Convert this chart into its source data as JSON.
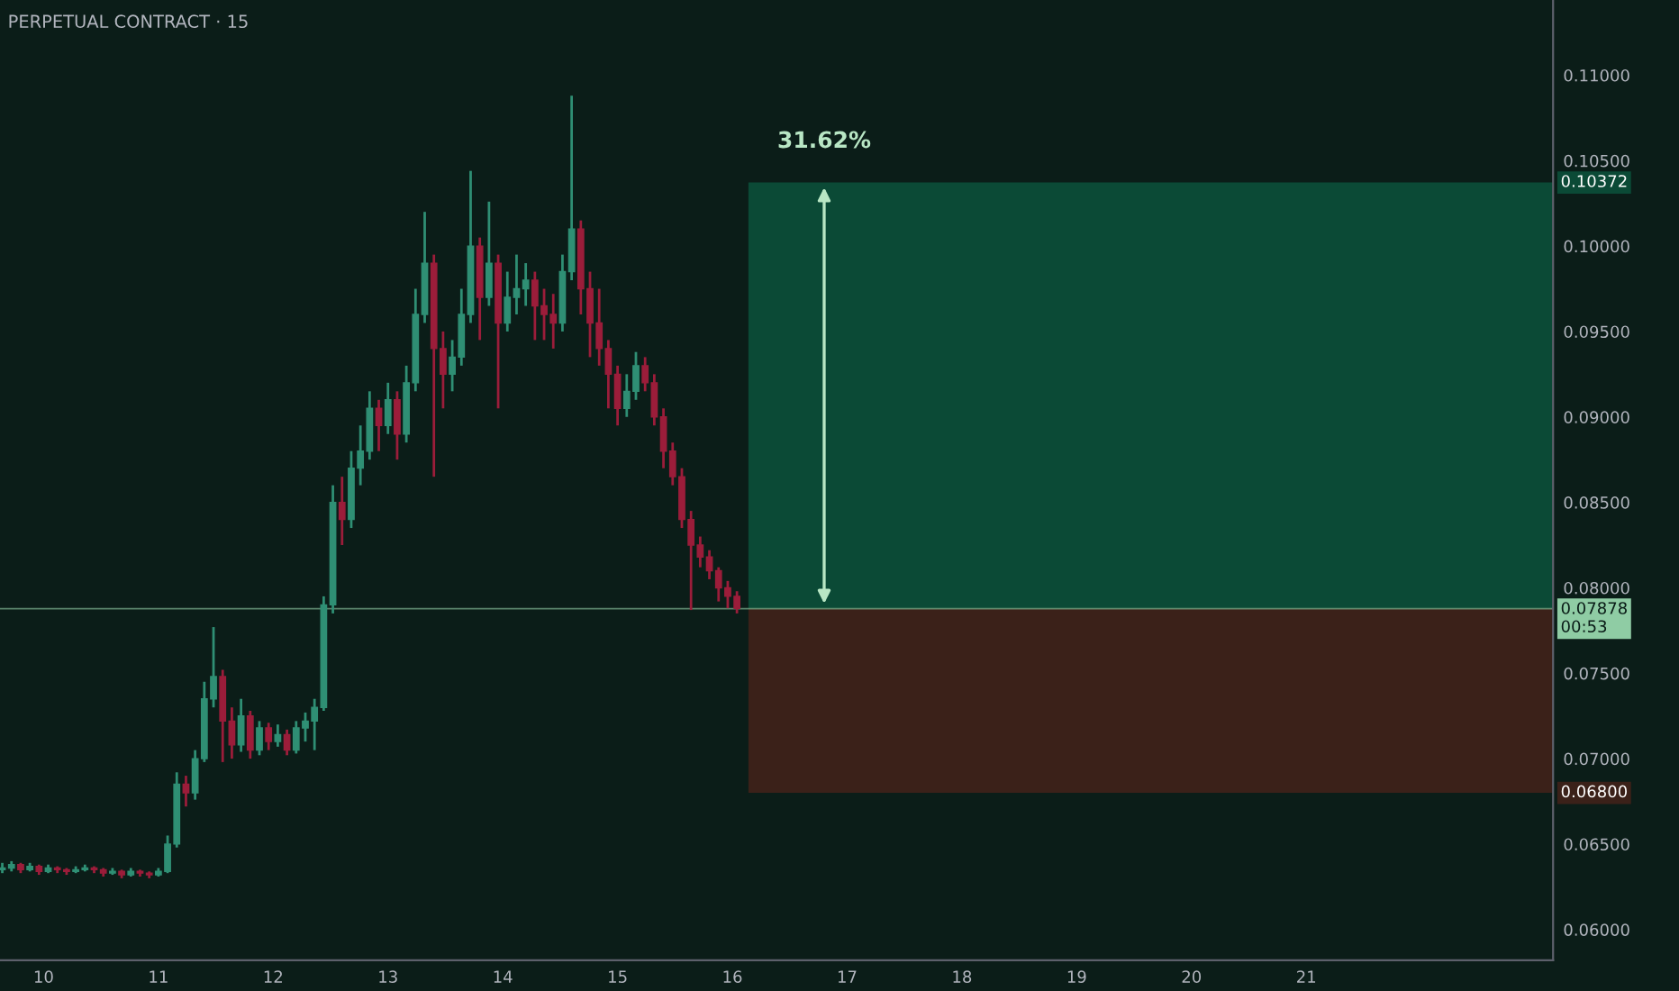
{
  "chart_data": {
    "type": "candlestick",
    "title": "PERPETUAL CONTRACT · 15",
    "x": [
      9.64,
      9.72,
      9.8,
      9.88,
      9.96,
      10.04,
      10.12,
      10.2,
      10.28,
      10.36,
      10.44,
      10.52,
      10.6,
      10.68,
      10.76,
      10.84,
      10.92,
      11.0,
      11.08,
      11.16,
      11.24,
      11.32,
      11.4,
      11.48,
      11.56,
      11.64,
      11.72,
      11.8,
      11.88,
      11.96,
      12.04,
      12.12,
      12.2,
      12.28,
      12.36,
      12.44,
      12.52,
      12.6,
      12.68,
      12.76,
      12.84,
      12.92,
      13.0,
      13.08,
      13.16,
      13.24,
      13.32,
      13.4,
      13.48,
      13.56,
      13.64,
      13.72,
      13.8,
      13.88,
      13.96,
      14.04,
      14.12,
      14.2,
      14.28,
      14.36,
      14.44,
      14.52,
      14.6,
      14.68,
      14.76,
      14.84,
      14.92,
      15.0,
      15.08,
      15.16,
      15.24,
      15.32,
      15.4,
      15.48,
      15.56,
      15.64,
      15.72,
      15.8,
      15.88,
      15.96,
      16.04
    ],
    "ohlc": [
      [
        0.0635,
        0.0639,
        0.0633,
        0.0636
      ],
      [
        0.0636,
        0.064,
        0.0634,
        0.0638
      ],
      [
        0.0638,
        0.0639,
        0.0633,
        0.0635
      ],
      [
        0.0635,
        0.0639,
        0.0634,
        0.0637
      ],
      [
        0.0637,
        0.0638,
        0.0632,
        0.0634
      ],
      [
        0.0634,
        0.0638,
        0.0633,
        0.0636
      ],
      [
        0.0636,
        0.0637,
        0.0633,
        0.0635
      ],
      [
        0.0635,
        0.0636,
        0.0632,
        0.0634
      ],
      [
        0.0634,
        0.0637,
        0.0633,
        0.0635
      ],
      [
        0.0635,
        0.0638,
        0.0634,
        0.0636
      ],
      [
        0.0636,
        0.0637,
        0.0633,
        0.0635
      ],
      [
        0.0635,
        0.0636,
        0.0631,
        0.0633
      ],
      [
        0.0633,
        0.0636,
        0.0632,
        0.0634
      ],
      [
        0.0634,
        0.0635,
        0.063,
        0.0632
      ],
      [
        0.0632,
        0.0636,
        0.0631,
        0.0634
      ],
      [
        0.0634,
        0.0635,
        0.0631,
        0.0633
      ],
      [
        0.0633,
        0.0634,
        0.063,
        0.0632
      ],
      [
        0.0632,
        0.0636,
        0.0631,
        0.0634
      ],
      [
        0.0634,
        0.0655,
        0.0633,
        0.065
      ],
      [
        0.065,
        0.0692,
        0.0648,
        0.0685
      ],
      [
        0.0685,
        0.069,
        0.0672,
        0.068
      ],
      [
        0.068,
        0.0705,
        0.0676,
        0.07
      ],
      [
        0.07,
        0.0745,
        0.0698,
        0.0735
      ],
      [
        0.0735,
        0.0777,
        0.073,
        0.0748
      ],
      [
        0.0748,
        0.0752,
        0.0698,
        0.0722
      ],
      [
        0.0722,
        0.073,
        0.07,
        0.0708
      ],
      [
        0.0708,
        0.0735,
        0.0704,
        0.0725
      ],
      [
        0.0725,
        0.0728,
        0.07,
        0.0705
      ],
      [
        0.0705,
        0.0722,
        0.0702,
        0.0718
      ],
      [
        0.0718,
        0.0721,
        0.0705,
        0.071
      ],
      [
        0.071,
        0.072,
        0.0707,
        0.0714
      ],
      [
        0.0714,
        0.0717,
        0.0702,
        0.0705
      ],
      [
        0.0705,
        0.0722,
        0.0703,
        0.0718
      ],
      [
        0.0718,
        0.0727,
        0.071,
        0.0722
      ],
      [
        0.0722,
        0.0735,
        0.0705,
        0.073
      ],
      [
        0.073,
        0.0795,
        0.0728,
        0.079
      ],
      [
        0.079,
        0.086,
        0.0785,
        0.085
      ],
      [
        0.085,
        0.0865,
        0.0825,
        0.084
      ],
      [
        0.084,
        0.088,
        0.0835,
        0.087
      ],
      [
        0.087,
        0.0895,
        0.086,
        0.088
      ],
      [
        0.088,
        0.0915,
        0.0875,
        0.0905
      ],
      [
        0.0905,
        0.091,
        0.088,
        0.0895
      ],
      [
        0.0895,
        0.092,
        0.089,
        0.091
      ],
      [
        0.091,
        0.0915,
        0.0875,
        0.089
      ],
      [
        0.089,
        0.093,
        0.0885,
        0.092
      ],
      [
        0.092,
        0.0975,
        0.0915,
        0.096
      ],
      [
        0.096,
        0.102,
        0.0955,
        0.099
      ],
      [
        0.099,
        0.0995,
        0.0865,
        0.094
      ],
      [
        0.094,
        0.095,
        0.0905,
        0.0925
      ],
      [
        0.0925,
        0.0945,
        0.0915,
        0.0935
      ],
      [
        0.0935,
        0.0975,
        0.093,
        0.096
      ],
      [
        0.096,
        0.1044,
        0.0955,
        0.1
      ],
      [
        0.1,
        0.1005,
        0.0945,
        0.097
      ],
      [
        0.097,
        0.1026,
        0.0965,
        0.099
      ],
      [
        0.099,
        0.0995,
        0.0905,
        0.0955
      ],
      [
        0.0955,
        0.0985,
        0.095,
        0.097
      ],
      [
        0.097,
        0.0995,
        0.096,
        0.0975
      ],
      [
        0.0975,
        0.099,
        0.0965,
        0.098
      ],
      [
        0.098,
        0.0985,
        0.0945,
        0.0965
      ],
      [
        0.0965,
        0.0975,
        0.0945,
        0.096
      ],
      [
        0.096,
        0.0972,
        0.094,
        0.0955
      ],
      [
        0.0955,
        0.0995,
        0.095,
        0.0985
      ],
      [
        0.0985,
        0.1088,
        0.098,
        0.101
      ],
      [
        0.101,
        0.1015,
        0.096,
        0.0975
      ],
      [
        0.0975,
        0.0985,
        0.0935,
        0.0955
      ],
      [
        0.0955,
        0.0975,
        0.093,
        0.094
      ],
      [
        0.094,
        0.0945,
        0.0905,
        0.0925
      ],
      [
        0.0925,
        0.093,
        0.0895,
        0.0905
      ],
      [
        0.0905,
        0.0925,
        0.09,
        0.0915
      ],
      [
        0.0915,
        0.0938,
        0.091,
        0.093
      ],
      [
        0.093,
        0.0935,
        0.0915,
        0.092
      ],
      [
        0.092,
        0.0925,
        0.0895,
        0.09
      ],
      [
        0.09,
        0.0905,
        0.087,
        0.088
      ],
      [
        0.088,
        0.0885,
        0.086,
        0.0865
      ],
      [
        0.0865,
        0.087,
        0.0835,
        0.084
      ],
      [
        0.084,
        0.0845,
        0.0787,
        0.0825
      ],
      [
        0.0825,
        0.083,
        0.0812,
        0.0818
      ],
      [
        0.0818,
        0.0822,
        0.0805,
        0.081
      ],
      [
        0.081,
        0.0812,
        0.0792,
        0.08
      ],
      [
        0.08,
        0.0804,
        0.0788,
        0.0795
      ],
      [
        0.0795,
        0.0798,
        0.0785,
        0.0788
      ]
    ],
    "colors": [
      "#2f8f74",
      "#2f8f74",
      "#9b1d3a",
      "#2f8f74",
      "#9b1d3a",
      "#2f8f74",
      "#9b1d3a",
      "#9b1d3a",
      "#2f8f74",
      "#2f8f74",
      "#9b1d3a",
      "#9b1d3a",
      "#2f8f74",
      "#9b1d3a",
      "#2f8f74",
      "#9b1d3a",
      "#9b1d3a",
      "#2f8f74",
      "#2f8f74",
      "#2f8f74",
      "#9b1d3a",
      "#2f8f74",
      "#2f8f74",
      "#2f8f74",
      "#9b1d3a",
      "#9b1d3a",
      "#2f8f74",
      "#9b1d3a",
      "#2f8f74",
      "#9b1d3a",
      "#2f8f74",
      "#9b1d3a",
      "#2f8f74",
      "#2f8f74",
      "#2f8f74",
      "#2f8f74",
      "#2f8f74",
      "#9b1d3a",
      "#2f8f74",
      "#2f8f74",
      "#2f8f74",
      "#9b1d3a",
      "#2f8f74",
      "#9b1d3a",
      "#2f8f74",
      "#2f8f74",
      "#2f8f74",
      "#9b1d3a",
      "#9b1d3a",
      "#2f8f74",
      "#2f8f74",
      "#2f8f74",
      "#9b1d3a",
      "#2f8f74",
      "#9b1d3a",
      "#2f8f74",
      "#2f8f74",
      "#2f8f74",
      "#9b1d3a",
      "#9b1d3a",
      "#9b1d3a",
      "#2f8f74",
      "#2f8f74",
      "#9b1d3a",
      "#9b1d3a",
      "#9b1d3a",
      "#9b1d3a",
      "#9b1d3a",
      "#2f8f74",
      "#2f8f74",
      "#9b1d3a",
      "#9b1d3a",
      "#9b1d3a",
      "#9b1d3a",
      "#9b1d3a",
      "#9b1d3a",
      "#9b1d3a",
      "#9b1d3a",
      "#9b1d3a",
      "#9b1d3a",
      "#9b1d3a"
    ],
    "xlim": [
      9.62,
      23.15
    ],
    "ylim": [
      0.0582,
      0.1144
    ],
    "xticks": [
      10,
      11,
      12,
      13,
      14,
      15,
      16,
      17,
      18,
      19,
      20,
      21
    ],
    "yticks": [
      {
        "value": 0.06,
        "label": "0.06000"
      },
      {
        "value": 0.065,
        "label": "0.06500"
      },
      {
        "value": 0.07,
        "label": "0.07000"
      },
      {
        "value": 0.075,
        "label": "0.07500"
      },
      {
        "value": 0.08,
        "label": "0.08000"
      },
      {
        "value": 0.085,
        "label": "0.08500"
      },
      {
        "value": 0.09,
        "label": "0.09000"
      },
      {
        "value": 0.095,
        "label": "0.09500"
      },
      {
        "value": 0.1,
        "label": "0.10000"
      },
      {
        "value": 0.105,
        "label": "0.10500"
      },
      {
        "value": 0.11,
        "label": "0.11000"
      }
    ],
    "ref_lines": [
      {
        "axis": "y",
        "value": 0.07878,
        "label": "0.07878\n00:53",
        "color": "#8fcca4"
      }
    ],
    "bands": [
      {
        "axis": "y",
        "from": 0.07878,
        "to": 0.10372,
        "label": "0.10372",
        "color": "#0b4a36"
      },
      {
        "axis": "y",
        "from": 0.07878,
        "to": 0.068,
        "label": "0.06800",
        "color": "#3b2119"
      }
    ],
    "annotations": [
      {
        "text": "31.62%",
        "x": 16.8,
        "y": 0.10372
      }
    ],
    "grid": false
  }
}
